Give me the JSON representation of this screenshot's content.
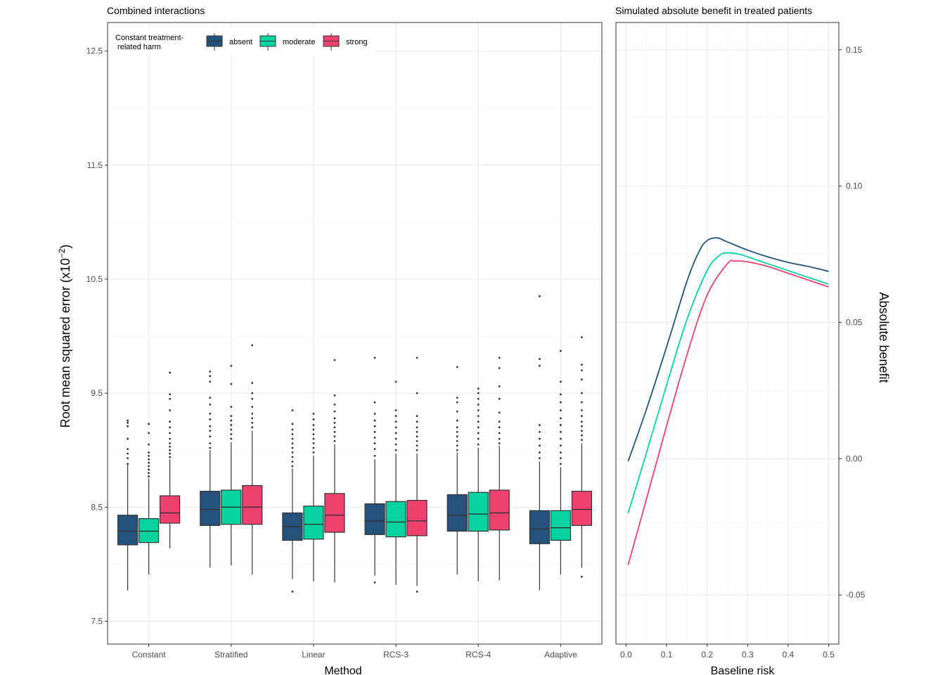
{
  "chart_data": [
    {
      "type": "boxplot",
      "title": "Combined interactions",
      "xlabel": "Method",
      "ylabel": "Root mean squared error (x10",
      "ylabel_exp": "−2",
      "ylabel_close": ")",
      "ylim": [
        7.3,
        12.75
      ],
      "yticks": [
        7.5,
        8.5,
        9.5,
        10.5,
        11.5,
        12.5
      ],
      "ytick_labels": [
        "7.5",
        "8.5",
        "9.5",
        "10.5",
        "11.5",
        "12.5"
      ],
      "grid": true,
      "legend_position": "top-left",
      "legend_title": [
        "Constant treatment-",
        " related harm"
      ],
      "categories": [
        "Constant",
        "Stratified",
        "Linear",
        "RCS-3",
        "RCS-4",
        "Adaptive"
      ],
      "series": [
        {
          "name": "absent",
          "color": "#24527A",
          "boxes": [
            {
              "min": 7.77,
              "q1": 8.17,
              "median": 8.29,
              "q3": 8.43,
              "max": 8.87,
              "outliers": [
                8.88,
                8.93,
                8.97,
                9.01,
                9.1,
                9.21,
                9.24,
                9.26
              ]
            },
            {
              "min": 7.97,
              "q1": 8.34,
              "median": 8.48,
              "q3": 8.64,
              "max": 9.0,
              "outliers": [
                9.02,
                9.06,
                9.12,
                9.17,
                9.21,
                9.27,
                9.32,
                9.4,
                9.46,
                9.6,
                9.65,
                9.69
              ]
            },
            {
              "min": 7.87,
              "q1": 8.21,
              "median": 8.33,
              "q3": 8.45,
              "max": 8.84,
              "outliers": [
                8.86,
                8.9,
                8.94,
                8.98,
                9.02,
                9.06,
                9.1,
                9.14,
                9.18,
                9.23,
                9.35,
                7.76
              ]
            },
            {
              "min": 7.9,
              "q1": 8.26,
              "median": 8.38,
              "q3": 8.53,
              "max": 8.92,
              "outliers": [
                8.95,
                9.01,
                9.06,
                9.11,
                9.16,
                9.21,
                9.26,
                9.32,
                9.42,
                9.81,
                7.84
              ]
            },
            {
              "min": 7.91,
              "q1": 8.29,
              "median": 8.43,
              "q3": 8.61,
              "max": 8.98,
              "outliers": [
                9.0,
                9.04,
                9.08,
                9.12,
                9.16,
                9.2,
                9.26,
                9.34,
                9.42,
                9.46,
                9.73
              ]
            },
            {
              "min": 7.77,
              "q1": 8.18,
              "median": 8.31,
              "q3": 8.47,
              "max": 8.9,
              "outliers": [
                8.93,
                8.98,
                9.04,
                9.1,
                9.16,
                9.22,
                9.74,
                9.8,
                10.35
              ]
            }
          ]
        },
        {
          "name": "moderate",
          "color": "#09D3A1",
          "boxes": [
            {
              "min": 7.91,
              "q1": 8.19,
              "median": 8.29,
              "q3": 8.4,
              "max": 8.75,
              "outliers": [
                8.77,
                8.8,
                8.83,
                8.86,
                8.89,
                8.92,
                8.95,
                8.98,
                9.05,
                9.15,
                9.23
              ]
            },
            {
              "min": 7.99,
              "q1": 8.35,
              "median": 8.5,
              "q3": 8.65,
              "max": 9.07,
              "outliers": [
                9.1,
                9.14,
                9.18,
                9.22,
                9.26,
                9.3,
                9.38,
                9.58,
                9.74
              ]
            },
            {
              "min": 7.85,
              "q1": 8.22,
              "median": 8.35,
              "q3": 8.51,
              "max": 8.95,
              "outliers": [
                8.98,
                9.02,
                9.06,
                9.1,
                9.14,
                9.18,
                9.22,
                9.27,
                9.32
              ]
            },
            {
              "min": 7.82,
              "q1": 8.24,
              "median": 8.37,
              "q3": 8.55,
              "max": 8.97,
              "outliers": [
                9.0,
                9.05,
                9.1,
                9.15,
                9.2,
                9.25,
                9.3,
                9.35,
                9.6
              ]
            },
            {
              "min": 7.85,
              "q1": 8.29,
              "median": 8.44,
              "q3": 8.63,
              "max": 9.02,
              "outliers": [
                9.05,
                9.1,
                9.15,
                9.2,
                9.25,
                9.3,
                9.35,
                9.4,
                9.45,
                9.5,
                9.54
              ]
            },
            {
              "min": 7.91,
              "q1": 8.21,
              "median": 8.32,
              "q3": 8.47,
              "max": 8.85,
              "outliers": [
                8.88,
                8.93,
                8.98,
                9.04,
                9.1,
                9.16,
                9.22,
                9.28,
                9.35,
                9.42,
                9.49,
                9.6,
                9.87
              ]
            }
          ]
        },
        {
          "name": "strong",
          "color": "#EE416E",
          "boxes": [
            {
              "min": 8.14,
              "q1": 8.36,
              "median": 8.45,
              "q3": 8.6,
              "max": 8.92,
              "outliers": [
                8.94,
                8.97,
                9.0,
                9.03,
                9.06,
                9.1,
                9.15,
                9.2,
                9.25,
                9.35,
                9.45,
                9.49,
                9.68
              ]
            },
            {
              "min": 7.91,
              "q1": 8.35,
              "median": 8.5,
              "q3": 8.69,
              "max": 9.17,
              "outliers": [
                9.2,
                9.24,
                9.28,
                9.32,
                9.38,
                9.45,
                9.5,
                9.59,
                9.92
              ]
            },
            {
              "min": 7.84,
              "q1": 8.28,
              "median": 8.43,
              "q3": 8.62,
              "max": 9.05,
              "outliers": [
                9.08,
                9.12,
                9.16,
                9.2,
                9.24,
                9.28,
                9.34,
                9.4,
                9.48,
                9.79
              ]
            },
            {
              "min": 7.81,
              "q1": 8.25,
              "median": 8.38,
              "q3": 8.56,
              "max": 8.97,
              "outliers": [
                9.0,
                9.04,
                9.08,
                9.12,
                9.16,
                9.2,
                9.25,
                9.3,
                9.5,
                9.81,
                7.76
              ]
            },
            {
              "min": 7.86,
              "q1": 8.3,
              "median": 8.45,
              "q3": 8.65,
              "max": 9.04,
              "outliers": [
                9.06,
                9.1,
                9.15,
                9.2,
                9.25,
                9.33,
                9.45,
                9.56,
                9.72,
                9.81
              ]
            },
            {
              "min": 7.97,
              "q1": 8.34,
              "median": 8.48,
              "q3": 8.64,
              "max": 9.06,
              "outliers": [
                9.09,
                9.13,
                9.17,
                9.21,
                9.25,
                9.3,
                9.35,
                9.42,
                9.5,
                9.62,
                9.7,
                9.75,
                9.99,
                7.89
              ]
            }
          ]
        }
      ]
    },
    {
      "type": "line",
      "title": "Simulated absolute benefit in treated patients",
      "xlabel": "Baseline risk",
      "ylabel": "Absolute benefit",
      "xlim": [
        -0.025,
        0.525
      ],
      "ylim": [
        -0.068,
        0.16
      ],
      "xticks": [
        0.0,
        0.1,
        0.2,
        0.3,
        0.4,
        0.5
      ],
      "xtick_labels": [
        "0.0",
        "0.1",
        "0.2",
        "0.3",
        "0.4",
        "0.5"
      ],
      "yticks": [
        -0.05,
        0.0,
        0.05,
        0.1,
        0.15
      ],
      "ytick_labels": [
        "-0.05",
        "0.00",
        "0.05",
        "0.10",
        "0.15"
      ],
      "grid": true,
      "yaxis_position": "right",
      "series": [
        {
          "name": "absent",
          "color": "#24527A",
          "x": [
            0.005,
            0.05,
            0.1,
            0.15,
            0.18,
            0.2,
            0.225,
            0.25,
            0.3,
            0.35,
            0.4,
            0.45,
            0.5
          ],
          "y": [
            -0.001,
            0.018,
            0.041,
            0.065,
            0.076,
            0.08,
            0.081,
            0.0795,
            0.0765,
            0.074,
            0.072,
            0.0705,
            0.0687
          ]
        },
        {
          "name": "moderate",
          "color": "#09D3A1",
          "x": [
            0.005,
            0.05,
            0.1,
            0.15,
            0.2,
            0.23,
            0.25,
            0.28,
            0.3,
            0.35,
            0.4,
            0.45,
            0.5
          ],
          "y": [
            -0.02,
            0.002,
            0.027,
            0.051,
            0.069,
            0.0745,
            0.0755,
            0.075,
            0.074,
            0.0715,
            0.069,
            0.0665,
            0.064
          ]
        },
        {
          "name": "strong",
          "color": "#EE416E",
          "x": [
            0.005,
            0.05,
            0.1,
            0.15,
            0.2,
            0.25,
            0.27,
            0.3,
            0.35,
            0.4,
            0.45,
            0.5
          ],
          "y": [
            -0.039,
            -0.015,
            0.012,
            0.038,
            0.06,
            0.0715,
            0.0725,
            0.0722,
            0.0705,
            0.068,
            0.0655,
            0.063
          ]
        }
      ]
    }
  ]
}
